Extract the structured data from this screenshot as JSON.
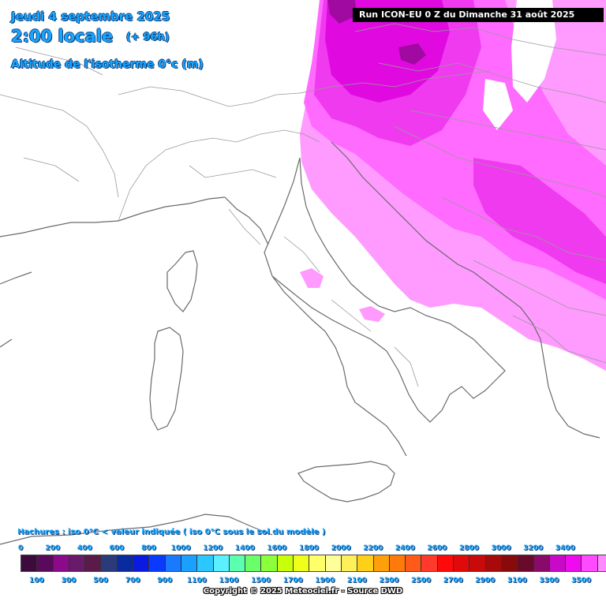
{
  "header": {
    "date": "Jeudi 4 septembre 2025",
    "time": "2:00 locale",
    "offset": "(+ 96h)",
    "parameter": "Altitude de l'isotherme 0°c (m)"
  },
  "run_info": "Run ICON-EU 0 Z du Dimanche 31 août 2025",
  "hatch_note": "Hachures : iso 0°C < valeur indiquée ( iso 0°C sous le sol du modèle )",
  "legend": {
    "top_labels": [
      "0",
      "200",
      "400",
      "600",
      "800",
      "1000",
      "1200",
      "1400",
      "1600",
      "1800",
      "2000",
      "2200",
      "2400",
      "2600",
      "2800",
      "3000",
      "3200",
      "3400"
    ],
    "bottom_labels": [
      "100",
      "300",
      "500",
      "700",
      "900",
      "1100",
      "1300",
      "1500",
      "1700",
      "1900",
      "2100",
      "2300",
      "2500",
      "2700",
      "2900",
      "3100",
      "3300",
      "3500"
    ],
    "colors": [
      "#3d0a3d",
      "#5a0a5a",
      "#8a0a8a",
      "#6a1a6a",
      "#5a1a4a",
      "#2a3a7a",
      "#0a2aa0",
      "#0a1ae0",
      "#0a3aff",
      "#1a7aff",
      "#1aa0ff",
      "#2ac8ff",
      "#5af0ff",
      "#5affb0",
      "#6aff6a",
      "#8aff3a",
      "#c8ff0a",
      "#f0ff1a",
      "#ffff6a",
      "#ffff9a",
      "#fff05a",
      "#ffd01a",
      "#ffa00a",
      "#ff7a0a",
      "#ff5a1a",
      "#ff3a2a",
      "#ff0a0a",
      "#e00a0a",
      "#c80a0a",
      "#a80a0a",
      "#880a0a",
      "#6a0a2a",
      "#8a0a6a",
      "#c80ac8",
      "#f00af0",
      "#ff4aff",
      "#ff8aff"
    ]
  },
  "copyright": "Copyright © 2025 Meteociel.fr - Source DWD",
  "map_colors": {
    "land_outline": "#6a6a6a",
    "border": "#9a9a9a",
    "zone_3500_light": "#ff9aff",
    "zone_3400": "#ff6aff",
    "zone_3300": "#f03af0",
    "zone_3200": "#e00ae0",
    "zone_3100": "#a00aa0"
  }
}
